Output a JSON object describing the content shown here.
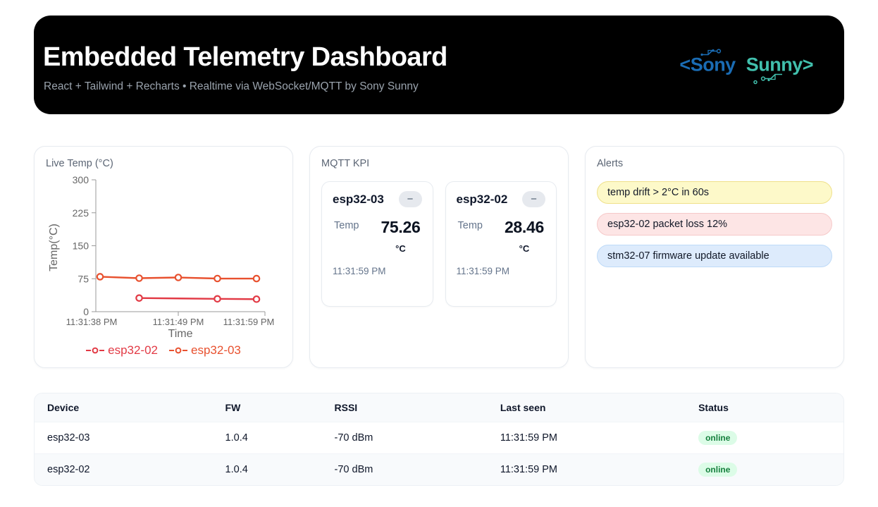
{
  "header": {
    "title": "Embedded Telemetry Dashboard",
    "subtitle": "React + Tailwind + Recharts • Realtime via WebSocket/MQTT by Sony Sunny",
    "logo": {
      "left": "<Sony",
      "right": "Sunny>",
      "left_color": "#1a6cb4",
      "right_color": "#41c0ad"
    }
  },
  "chart_card": {
    "title": "Live Temp (°C)"
  },
  "chart_data": {
    "type": "line",
    "title": "Live Temp (°C)",
    "xlabel": "Time",
    "ylabel": "Temp(°C)",
    "ylim": [
      0,
      300
    ],
    "yticks": [
      0,
      75,
      150,
      225,
      300
    ],
    "x_slots": 5,
    "xticks": [
      {
        "i": 0,
        "label": "11:31:38 PM"
      },
      {
        "i": 2,
        "label": "11:31:49 PM"
      },
      {
        "i": 4,
        "label": "11:31:59 PM"
      }
    ],
    "series": [
      {
        "name": "esp32-02",
        "color": "#e23a45",
        "points": [
          {
            "i": 1,
            "v": 31.0
          },
          {
            "i": 3,
            "v": 29.2
          },
          {
            "i": 4,
            "v": 28.46
          }
        ]
      },
      {
        "name": "esp32-03",
        "color": "#e8512f",
        "points": [
          {
            "i": 0,
            "v": 79.5
          },
          {
            "i": 1,
            "v": 76.2
          },
          {
            "i": 2,
            "v": 77.8
          },
          {
            "i": 3,
            "v": 75.4
          },
          {
            "i": 4,
            "v": 75.26
          }
        ]
      }
    ],
    "legend_position": "bottom",
    "grid": false,
    "axis_color": "#999999",
    "tick_text_color": "#666666"
  },
  "kpi": {
    "title": "MQTT KPI",
    "cards": [
      {
        "device": "esp32-03",
        "metric_label": "Temp",
        "value": "75.26",
        "unit": "°C",
        "timestamp": "11:31:59 PM",
        "collapse_label": "−"
      },
      {
        "device": "esp32-02",
        "metric_label": "Temp",
        "value": "28.46",
        "unit": "°C",
        "timestamp": "11:31:59 PM",
        "collapse_label": "−"
      }
    ]
  },
  "alerts": {
    "title": "Alerts",
    "items": [
      {
        "text": "temp drift > 2°C in 60s",
        "bg": "#fdf9c9",
        "border": "#efe08a"
      },
      {
        "text": "esp32-02 packet loss 12%",
        "bg": "#fde5e5",
        "border": "#f6c9c9"
      },
      {
        "text": "stm32-07 firmware update available",
        "bg": "#ddebfc",
        "border": "#bedaf8"
      }
    ]
  },
  "devices": {
    "columns": [
      "Device",
      "FW",
      "RSSI",
      "Last seen",
      "Status"
    ],
    "rows": [
      {
        "name": "esp32-03",
        "fw": "1.0.4",
        "rssi": "-70 dBm",
        "last_seen": "11:31:59 PM",
        "status": "online"
      },
      {
        "name": "esp32-02",
        "fw": "1.0.4",
        "rssi": "-70 dBm",
        "last_seen": "11:31:59 PM",
        "status": "online"
      }
    ],
    "status_colors": {
      "online_bg": "#dcfce7",
      "online_text": "#15803d"
    }
  }
}
